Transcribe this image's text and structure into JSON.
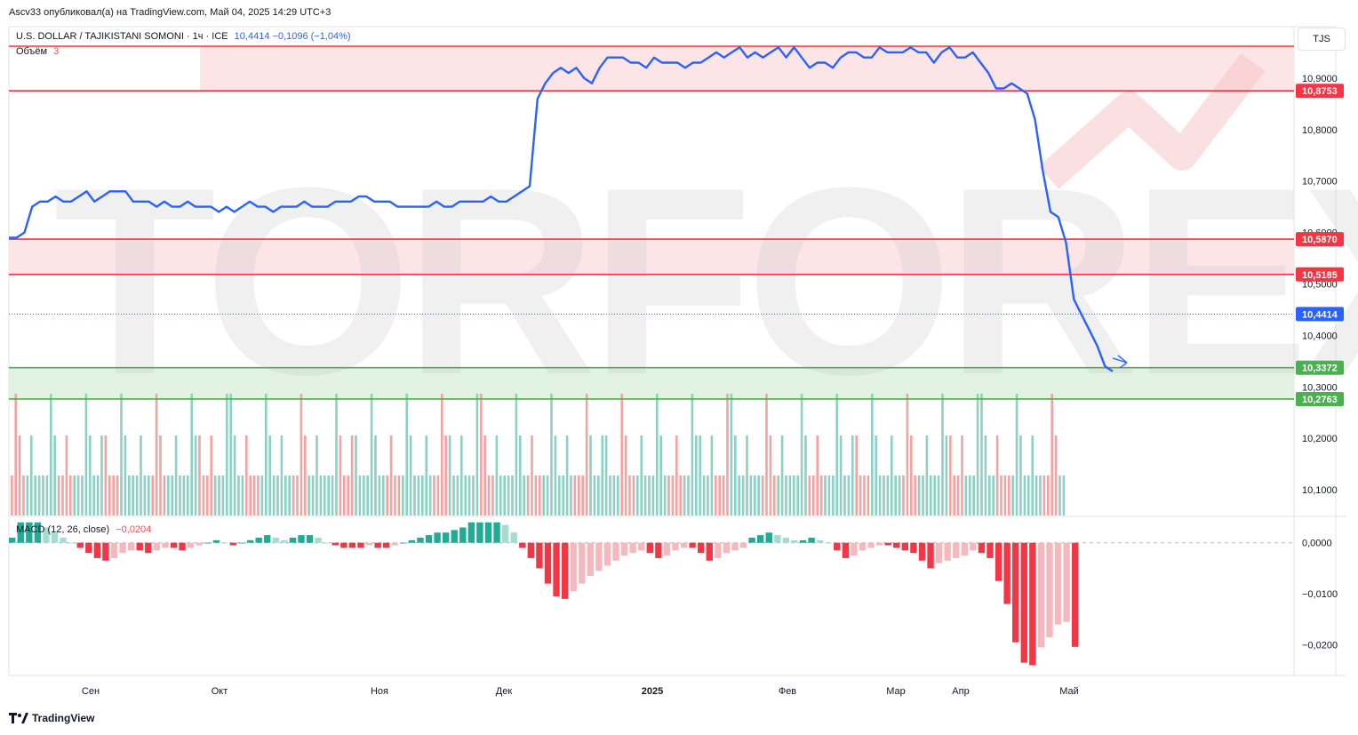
{
  "header": {
    "published": "Ascv33 опубликовал(а) на TradingView.com, Май 04, 2025 14:29 UTC+3"
  },
  "legend": {
    "symbol": "U.S. DOLLAR / TAJIKISTANI SOMONI · 1ч · ICE",
    "value": "10,4414 −0,1096 (−1,04%)"
  },
  "volume": {
    "label": "Объём",
    "value": "3"
  },
  "macd": {
    "label": "MACD (12, 26, close)",
    "value": "−0,0204"
  },
  "currency_button": "TJS",
  "watermark": "TORFOREX.COM",
  "footer": {
    "brand": "TradingView"
  },
  "colors": {
    "line": "#2962ff",
    "red": "#f23645",
    "green": "#4caf50",
    "vol_up": "#8fd0c4",
    "vol_down": "#f4a3a3",
    "macd_up": "#22ab94",
    "macd_down": "#f23645"
  },
  "chart_data": {
    "type": "line",
    "x_tick_labels": [
      "Сен",
      "Окт",
      "Ноя",
      "Дек",
      "2025",
      "Фев",
      "Мар",
      "Апр",
      "Май"
    ],
    "y_tick_labels": [
      "10,9000",
      "10,8000",
      "10,7000",
      "10,6000",
      "10,5000",
      "10,4000",
      "10,3000",
      "10,2000",
      "10,1000"
    ],
    "ylim": [
      10.05,
      11.0
    ],
    "series": [
      {
        "values": [
          10.59,
          10.59,
          10.6,
          10.65,
          10.66,
          10.66,
          10.67,
          10.66,
          10.66,
          10.67,
          10.68,
          10.66,
          10.67,
          10.68,
          10.68,
          10.68,
          10.66,
          10.66,
          10.66,
          10.65,
          10.66,
          10.65,
          10.65,
          10.66,
          10.65,
          10.65,
          10.65,
          10.64,
          10.65,
          10.64,
          10.65,
          10.66,
          10.65,
          10.65,
          10.64,
          10.65,
          10.65,
          10.65,
          10.66,
          10.65,
          10.65,
          10.65,
          10.66,
          10.66,
          10.66,
          10.67,
          10.67,
          10.66,
          10.66,
          10.66,
          10.65,
          10.65,
          10.65,
          10.65,
          10.65,
          10.66,
          10.65,
          10.65,
          10.66,
          10.66,
          10.66,
          10.66,
          10.67,
          10.66,
          10.66,
          10.67,
          10.68,
          10.69,
          10.86,
          10.89,
          10.91,
          10.92,
          10.91,
          10.92,
          10.9,
          10.89,
          10.92,
          10.94,
          10.94,
          10.94,
          10.93,
          10.93,
          10.92,
          10.94,
          10.93,
          10.93,
          10.93,
          10.92,
          10.93,
          10.93,
          10.94,
          10.95,
          10.94,
          10.95,
          10.96,
          10.94,
          10.95,
          10.94,
          10.95,
          10.96,
          10.94,
          10.96,
          10.94,
          10.92,
          10.93,
          10.93,
          10.92,
          10.94,
          10.95,
          10.95,
          10.94,
          10.94,
          10.96,
          10.95,
          10.95,
          10.95,
          10.96,
          10.95,
          10.95,
          10.93,
          10.95,
          10.96,
          10.94,
          10.94,
          10.95,
          10.93,
          10.91,
          10.88,
          10.88,
          10.89,
          10.88,
          10.87,
          10.82,
          10.72,
          10.64,
          10.63,
          10.58,
          10.47,
          10.44,
          10.41,
          10.38,
          10.34,
          10.33
        ]
      }
    ],
    "price_labels": [
      {
        "value": 10.8753,
        "text": "10,8753",
        "kind": "resistance"
      },
      {
        "value": 10.587,
        "text": "10,5870",
        "kind": "resistance"
      },
      {
        "value": 10.5185,
        "text": "10,5185",
        "kind": "resistance"
      },
      {
        "value": 10.4414,
        "text": "10,4414",
        "kind": "current"
      },
      {
        "value": 10.3372,
        "text": "10,3372",
        "kind": "support"
      },
      {
        "value": 10.2763,
        "text": "10,2763",
        "kind": "support"
      }
    ],
    "macd_tick_labels": [
      "0,0000",
      "−0,0100",
      "−0,0200"
    ],
    "macd_ylim": [
      -0.026,
      0.005
    ],
    "macd_values": [
      0.001,
      0.004,
      0.004,
      0.004,
      0.003,
      0.002,
      0.001,
      0.0,
      -0.001,
      -0.002,
      -0.003,
      -0.0035,
      -0.003,
      -0.002,
      -0.0015,
      -0.0015,
      -0.002,
      -0.0015,
      -0.001,
      -0.001,
      -0.0015,
      -0.001,
      -0.0005,
      0.0,
      0.0005,
      0.0,
      -0.0005,
      0.0,
      0.0005,
      0.001,
      0.0015,
      0.001,
      0.0005,
      0.001,
      0.0015,
      0.0015,
      0.001,
      0.0,
      -0.0005,
      -0.001,
      -0.001,
      -0.001,
      -0.0005,
      -0.001,
      -0.001,
      -0.0005,
      0.0,
      0.0005,
      0.001,
      0.0015,
      0.002,
      0.002,
      0.0025,
      0.003,
      0.004,
      0.004,
      0.004,
      0.004,
      0.0035,
      0.002,
      -0.001,
      -0.003,
      -0.005,
      -0.008,
      -0.0105,
      -0.011,
      -0.0095,
      -0.008,
      -0.0065,
      -0.0055,
      -0.0045,
      -0.0035,
      -0.0025,
      -0.002,
      -0.0015,
      -0.002,
      -0.003,
      -0.0025,
      -0.0015,
      -0.001,
      -0.001,
      -0.002,
      -0.0035,
      -0.003,
      -0.002,
      -0.0015,
      -0.001,
      0.001,
      0.0015,
      0.002,
      0.0015,
      0.001,
      0.0005,
      0.0005,
      0.001,
      0.0005,
      0.0,
      -0.0015,
      -0.003,
      -0.0025,
      -0.0015,
      -0.001,
      -0.0005,
      -0.0005,
      -0.001,
      -0.0015,
      -0.002,
      -0.0035,
      -0.005,
      -0.004,
      -0.0035,
      -0.003,
      -0.0025,
      -0.0015,
      -0.002,
      -0.003,
      -0.0075,
      -0.012,
      -0.0195,
      -0.0235,
      -0.024,
      -0.0205,
      -0.0185,
      -0.016,
      -0.0155,
      -0.0204
    ]
  }
}
